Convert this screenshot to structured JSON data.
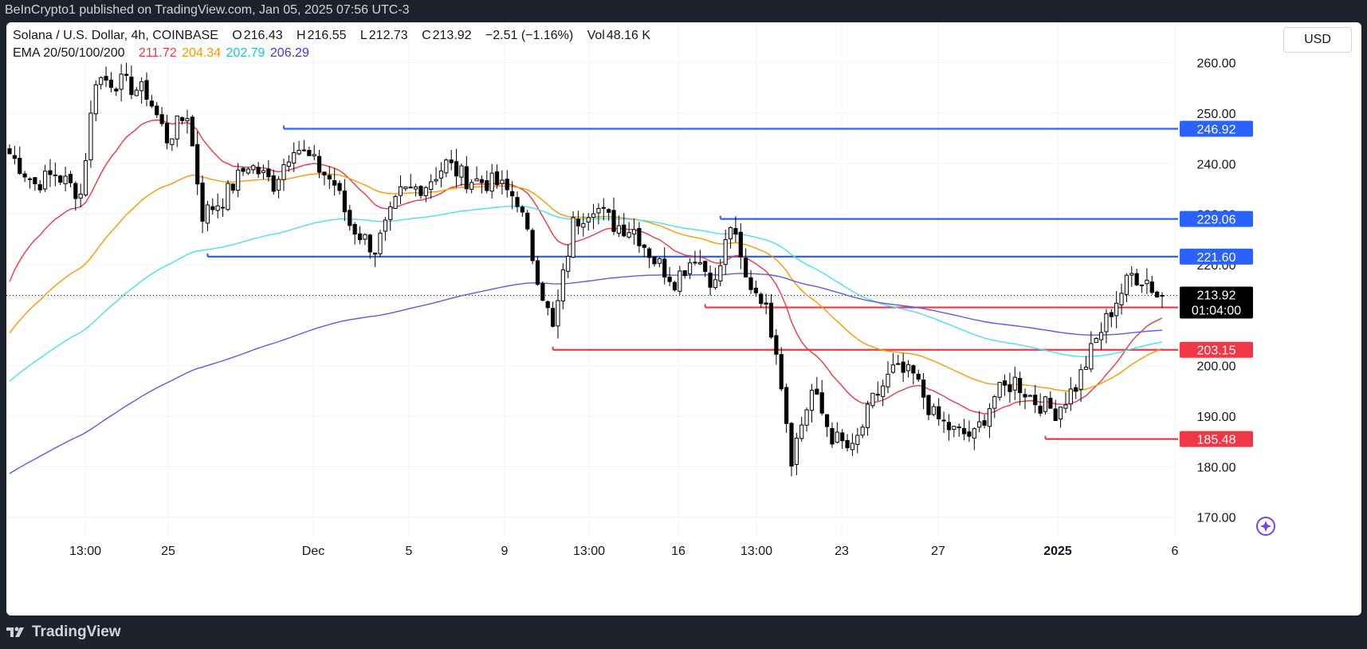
{
  "header": {
    "publish_line": "BeInCrypto1 published on TradingView.com, Jan 05, 2025 07:56 UTC-3"
  },
  "legend": {
    "symbol": "Solana / U.S. Dollar, 4h, COINBASE",
    "o_label": "O",
    "o_value": "216.43",
    "h_label": "H",
    "h_value": "216.55",
    "l_label": "L",
    "l_value": "212.73",
    "c_label": "C",
    "c_value": "213.92",
    "change": "−2.51 (−1.16%)",
    "vol_label": "Vol",
    "vol_value": "48.16 K",
    "ema_label": "EMA 20/50/100/200",
    "ema20": "211.72",
    "ema50": "204.34",
    "ema100": "202.79",
    "ema200": "206.29"
  },
  "currency_button": "USD",
  "footer": {
    "brand": "TradingView"
  },
  "colors": {
    "up": "#ffffff",
    "down": "#000000",
    "wick": "#000000",
    "ema20": "#f23645",
    "ema50": "#ff9800",
    "ema100": "#4ddfee",
    "ema200": "#5b5bf0",
    "resistance": "#2962ff",
    "support": "#f23645",
    "price_tag": "#000000"
  },
  "chart_data": {
    "type": "candlestick",
    "title": "Solana / U.S. Dollar, 4h, COINBASE",
    "ylim": [
      166,
      268
    ],
    "y_ticks": [
      "260.00",
      "250.00",
      "240.00",
      "230.00",
      "220.00",
      "200.00",
      "190.00",
      "180.00",
      "170.00"
    ],
    "x_ticks": [
      "13:00",
      "25",
      "Dec",
      "5",
      "9",
      "13:00",
      "16",
      "13:00",
      "23",
      "27",
      "2025",
      "6"
    ],
    "current_price": {
      "label": "213.92",
      "countdown": "01:04:00",
      "value": 213.92
    },
    "resistance_levels": [
      {
        "label": "246.92",
        "value": 246.92,
        "x_start": 54
      },
      {
        "label": "229.06",
        "value": 229.06,
        "x_start": 140
      },
      {
        "label": "221.60",
        "value": 221.6,
        "x_start": 39
      }
    ],
    "support_levels": [
      {
        "label": "211.54",
        "value": 211.54,
        "x_start": 137
      },
      {
        "label": "203.15",
        "value": 203.15,
        "x_start": 107
      },
      {
        "label": "185.48",
        "value": 185.48,
        "x_start": 204
      }
    ],
    "anchors": [
      [
        0,
        242
      ],
      [
        5,
        236
      ],
      [
        9,
        238
      ],
      [
        14,
        234
      ],
      [
        17,
        257
      ],
      [
        22,
        256
      ],
      [
        27,
        254
      ],
      [
        31,
        245
      ],
      [
        35,
        250
      ],
      [
        38,
        230
      ],
      [
        42,
        233
      ],
      [
        47,
        240
      ],
      [
        52,
        236
      ],
      [
        56,
        244
      ],
      [
        60,
        240
      ],
      [
        64,
        236
      ],
      [
        67,
        228
      ],
      [
        72,
        223
      ],
      [
        77,
        234
      ],
      [
        82,
        236
      ],
      [
        86,
        240
      ],
      [
        90,
        237
      ],
      [
        96,
        236
      ],
      [
        100,
        233
      ],
      [
        104,
        218
      ],
      [
        107,
        207
      ],
      [
        111,
        228
      ],
      [
        115,
        232
      ],
      [
        119,
        228
      ],
      [
        123,
        227
      ],
      [
        127,
        221
      ],
      [
        131,
        217
      ],
      [
        135,
        222
      ],
      [
        139,
        216
      ],
      [
        142,
        228
      ],
      [
        145,
        217
      ],
      [
        148,
        214
      ],
      [
        151,
        204
      ],
      [
        154,
        182
      ],
      [
        158,
        195
      ],
      [
        162,
        186
      ],
      [
        166,
        183
      ],
      [
        170,
        193
      ],
      [
        174,
        199
      ],
      [
        178,
        198
      ],
      [
        182,
        190
      ],
      [
        186,
        187
      ],
      [
        190,
        186
      ],
      [
        194,
        194
      ],
      [
        198,
        197
      ],
      [
        202,
        193
      ],
      [
        206,
        191
      ],
      [
        210,
        196
      ],
      [
        214,
        205
      ],
      [
        218,
        213
      ],
      [
        221,
        218
      ],
      [
        224,
        217
      ],
      [
        226,
        214
      ]
    ]
  }
}
